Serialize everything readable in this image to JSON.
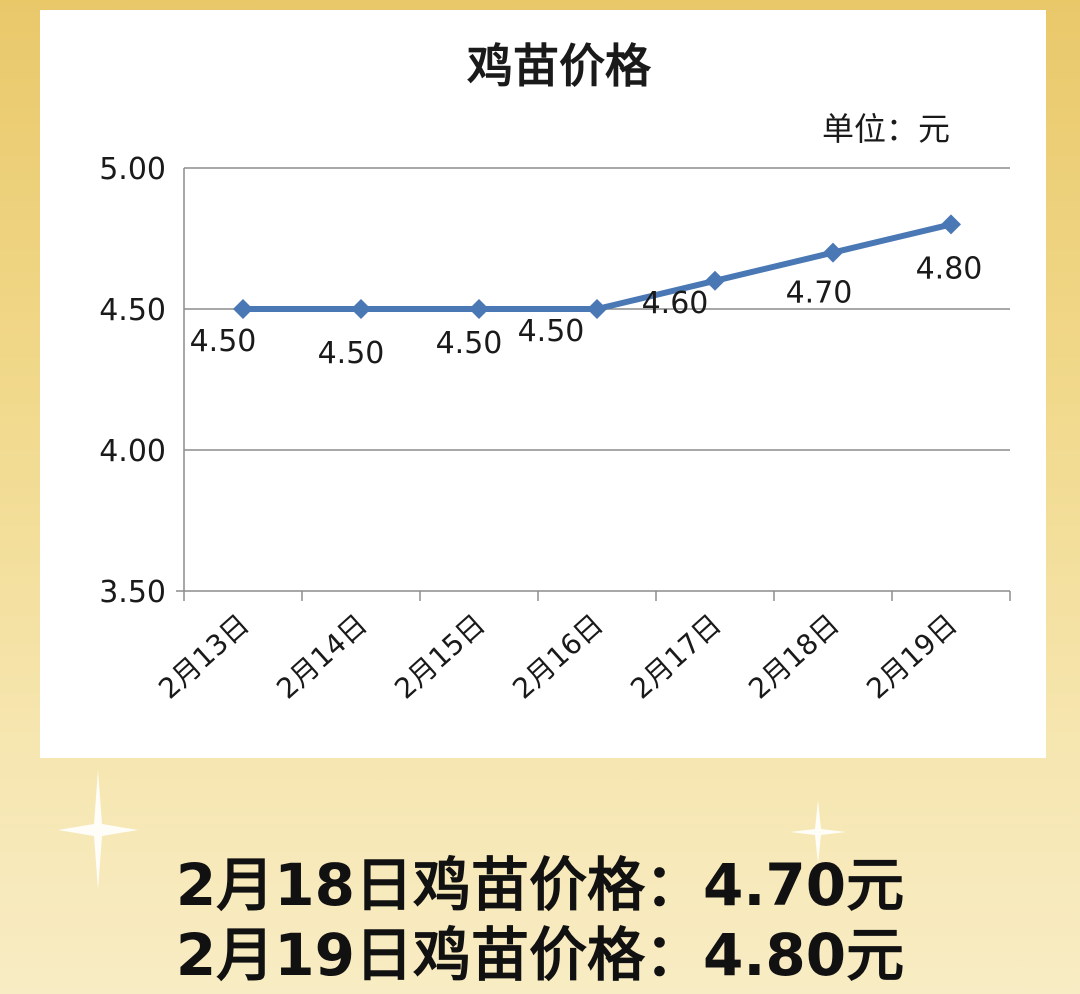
{
  "chart_data": {
    "type": "line",
    "title": "鸡苗价格",
    "unit_label": "单位：元",
    "categories": [
      "2月13日",
      "2月14日",
      "2月15日",
      "2月16日",
      "2月17日",
      "2月18日",
      "2月19日"
    ],
    "values": [
      4.5,
      4.5,
      4.5,
      4.5,
      4.6,
      4.7,
      4.8
    ],
    "data_labels": [
      "4.50",
      "4.50",
      "4.50",
      "4.50",
      "4.60",
      "4.70",
      "4.80"
    ],
    "y_ticks": [
      "5.00",
      "4.50",
      "4.00",
      "3.50"
    ],
    "ylim": [
      3.5,
      5.0
    ],
    "grid": true,
    "legend": "none",
    "line_color": "#4a78b5"
  },
  "captions": {
    "line1": "2月18日鸡苗价格：4.70元",
    "line2": "2月19日鸡苗价格：4.80元"
  }
}
